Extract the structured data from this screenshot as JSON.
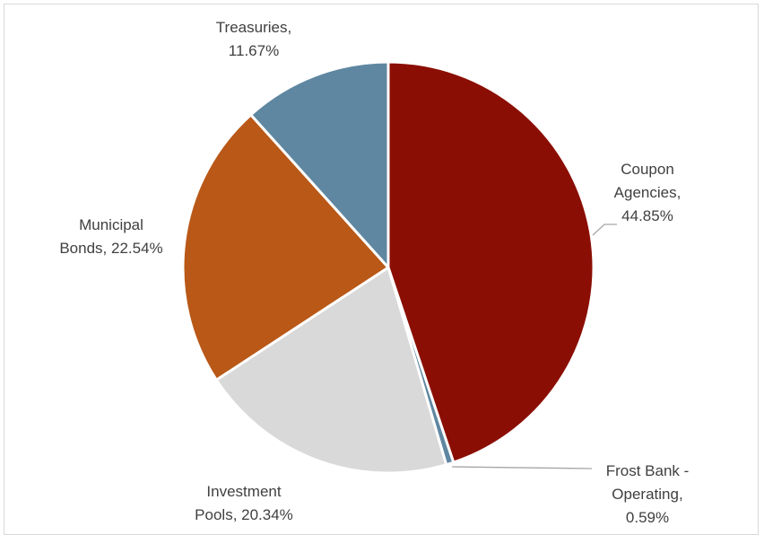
{
  "chart_data": {
    "type": "pie",
    "title": "",
    "slices": [
      {
        "label_lines": [
          "Coupon",
          "Agencies,",
          "44.85%"
        ],
        "name": "Coupon Agencies",
        "value": 44.85,
        "color": "#8b0e04"
      },
      {
        "label_lines": [
          "Frost Bank -",
          "Operating,",
          "0.59%"
        ],
        "name": "Frost Bank - Operating",
        "value": 0.59,
        "color": "#5f87a1"
      },
      {
        "label_lines": [
          "Investment",
          "Pools, 20.34%"
        ],
        "name": "Investment Pools",
        "value": 20.34,
        "color": "#d9d9d9"
      },
      {
        "label_lines": [
          "Municipal",
          "Bonds, 22.54%"
        ],
        "name": "Municipal Bonds",
        "value": 22.54,
        "color": "#b95817"
      },
      {
        "label_lines": [
          "Treasuries,",
          "11.67%"
        ],
        "name": "Treasuries",
        "value": 11.67,
        "color": "#5f87a1"
      }
    ],
    "leader_line_color": "#a6a6a6",
    "slice_border_color": "#ffffff",
    "legend": "none"
  }
}
